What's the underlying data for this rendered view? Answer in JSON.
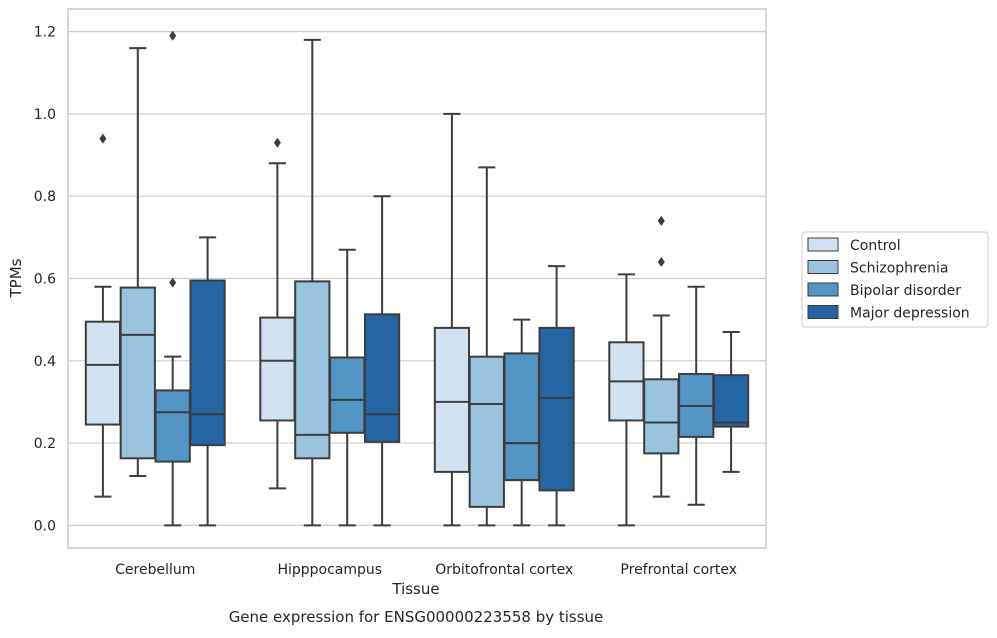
{
  "chart_data": {
    "type": "box",
    "caption": "Gene expression for ENSG00000223558 by tissue",
    "xlabel": "Tissue",
    "ylabel": "TPMs",
    "ylim": [
      -0.055,
      1.255
    ],
    "yticks": [
      "0.0",
      "0.2",
      "0.4",
      "0.6",
      "0.8",
      "1.0",
      "1.2"
    ],
    "ytick_values": [
      0.0,
      0.2,
      0.4,
      0.6,
      0.8,
      1.0,
      1.2
    ],
    "grid": true,
    "legend_position": "right",
    "categories": [
      "Cerebellum",
      "Hipppocampus",
      "Orbitofrontal cortex",
      "Prefrontal cortex"
    ],
    "series": [
      {
        "name": "Control",
        "color": "#d1e1f0",
        "boxes": [
          {
            "whisker_low": 0.07,
            "q1": 0.245,
            "median": 0.39,
            "q3": 0.495,
            "whisker_high": 0.58,
            "outliers": [
              0.94
            ]
          },
          {
            "whisker_low": 0.09,
            "q1": 0.255,
            "median": 0.4,
            "q3": 0.505,
            "whisker_high": 0.88,
            "outliers": [
              0.93
            ]
          },
          {
            "whisker_low": 0.0,
            "q1": 0.13,
            "median": 0.3,
            "q3": 0.48,
            "whisker_high": 1.0,
            "outliers": []
          },
          {
            "whisker_low": 0.0,
            "q1": 0.255,
            "median": 0.35,
            "q3": 0.445,
            "whisker_high": 0.61,
            "outliers": []
          }
        ]
      },
      {
        "name": "Schizophrenia",
        "color": "#9ac4dd",
        "boxes": [
          {
            "whisker_low": 0.12,
            "q1": 0.163,
            "median": 0.463,
            "q3": 0.578,
            "whisker_high": 1.16,
            "outliers": []
          },
          {
            "whisker_low": 0.0,
            "q1": 0.163,
            "median": 0.22,
            "q3": 0.593,
            "whisker_high": 1.18,
            "outliers": []
          },
          {
            "whisker_low": 0.0,
            "q1": 0.045,
            "median": 0.295,
            "q3": 0.41,
            "whisker_high": 0.87,
            "outliers": []
          },
          {
            "whisker_low": 0.07,
            "q1": 0.175,
            "median": 0.25,
            "q3": 0.355,
            "whisker_high": 0.51,
            "outliers": [
              0.64,
              0.74
            ]
          }
        ]
      },
      {
        "name": "Bipolar disorder",
        "color": "#5395c4",
        "boxes": [
          {
            "whisker_low": 0.0,
            "q1": 0.155,
            "median": 0.275,
            "q3": 0.328,
            "whisker_high": 0.41,
            "outliers": [
              0.59,
              1.19
            ]
          },
          {
            "whisker_low": 0.0,
            "q1": 0.225,
            "median": 0.305,
            "q3": 0.408,
            "whisker_high": 0.67,
            "outliers": []
          },
          {
            "whisker_low": 0.0,
            "q1": 0.11,
            "median": 0.2,
            "q3": 0.418,
            "whisker_high": 0.5,
            "outliers": []
          },
          {
            "whisker_low": 0.05,
            "q1": 0.215,
            "median": 0.29,
            "q3": 0.368,
            "whisker_high": 0.58,
            "outliers": []
          }
        ]
      },
      {
        "name": "Major depression",
        "color": "#2465a4",
        "boxes": [
          {
            "whisker_low": 0.0,
            "q1": 0.195,
            "median": 0.27,
            "q3": 0.595,
            "whisker_high": 0.7,
            "outliers": []
          },
          {
            "whisker_low": 0.0,
            "q1": 0.203,
            "median": 0.27,
            "q3": 0.513,
            "whisker_high": 0.8,
            "outliers": []
          },
          {
            "whisker_low": 0.0,
            "q1": 0.085,
            "median": 0.31,
            "q3": 0.48,
            "whisker_high": 0.63,
            "outliers": []
          },
          {
            "whisker_low": 0.13,
            "q1": 0.24,
            "median": 0.25,
            "q3": 0.365,
            "whisker_high": 0.47,
            "outliers": []
          }
        ]
      }
    ]
  }
}
